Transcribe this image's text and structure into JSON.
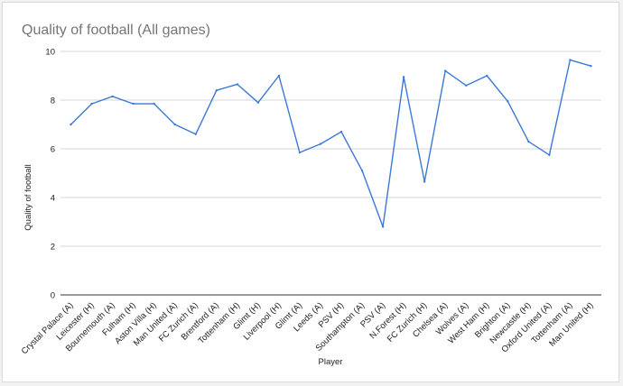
{
  "chart_data": {
    "type": "line",
    "title": "Quality of football (All games)",
    "xlabel": "Player",
    "ylabel": "Quality of football",
    "ylim": [
      0,
      10
    ],
    "yticks": [
      "0",
      "2",
      "4",
      "6",
      "8",
      "10"
    ],
    "grid": true,
    "legend": "none",
    "series_color": "#3c78d8",
    "categories": [
      "Crystal Palace (A)",
      "Leicester (H)",
      "Bournemouth (A)",
      "Fulham (H)",
      "Aston Villa (H)",
      "Man United (A)",
      "FC Zurich (A)",
      "Brentford (A)",
      "Tottenham (H)",
      "Glimt (H)",
      "Liverpool (H)",
      "Glimt (A)",
      "Leeds (A)",
      "PSV (H)",
      "Southampton (A)",
      "PSV (A)",
      "N.Forest (H)",
      "FC Zurich (H)",
      "Chelsea (A)",
      "Wolves (A)",
      "West Ham (H)",
      "Brighton (A)",
      "Newcastle (H)",
      "Oxford United (A)",
      "Tottenham (A)",
      "Man United (H)"
    ],
    "series": [
      {
        "values": [
          7.0,
          7.85,
          8.15,
          7.85,
          7.85,
          7.0,
          6.6,
          8.4,
          8.65,
          7.9,
          9.0,
          5.85,
          6.2,
          6.7,
          5.1,
          2.8,
          8.95,
          4.65,
          9.2,
          8.6,
          9.0,
          7.95,
          6.3,
          5.75,
          9.65,
          9.4
        ]
      }
    ]
  }
}
